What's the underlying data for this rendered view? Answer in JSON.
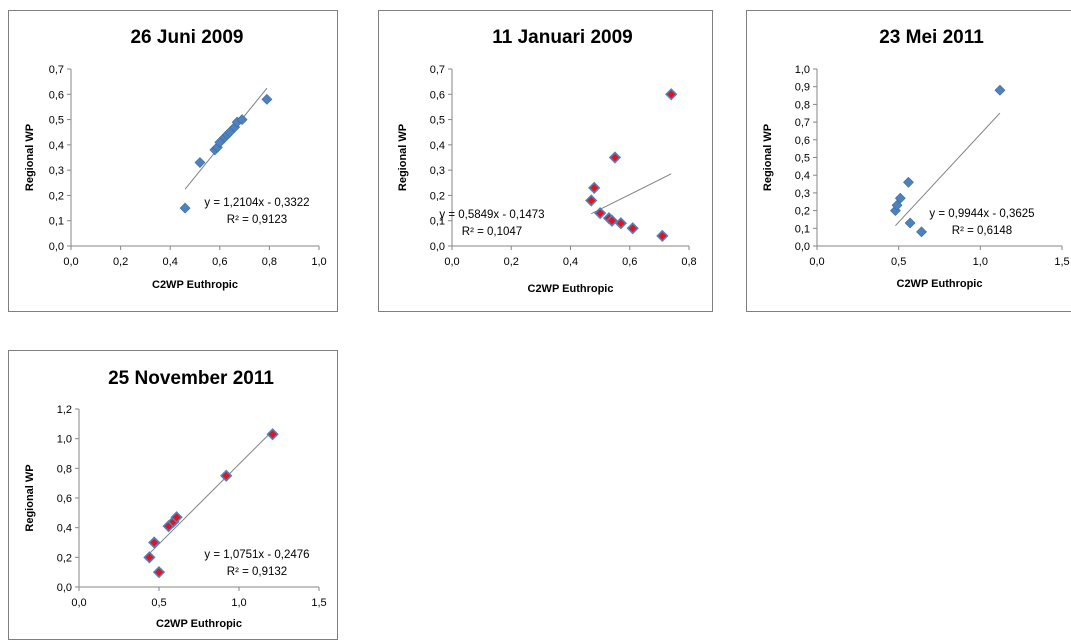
{
  "colors": {
    "blue_marker": "#4f81bd",
    "red_fill": "#e0151f",
    "trendline": "#808080",
    "axis": "#868686",
    "text": "#000000"
  },
  "chart_data": [
    {
      "type": "scatter",
      "title": "26 Juni 2009",
      "xlabel": "C2WP Euthropic",
      "ylabel": "Regional WP",
      "xlim": [
        0,
        1.0
      ],
      "ylim": [
        0,
        0.7
      ],
      "xticks": [
        "0,0",
        "0,2",
        "0,4",
        "0,6",
        "0,8",
        "1,0"
      ],
      "yticks": [
        "0,0",
        "0,1",
        "0,2",
        "0,3",
        "0,4",
        "0,5",
        "0,6",
        "0,7"
      ],
      "marker": "blue",
      "points": [
        [
          0.46,
          0.15
        ],
        [
          0.52,
          0.33
        ],
        [
          0.58,
          0.38
        ],
        [
          0.59,
          0.39
        ],
        [
          0.6,
          0.41
        ],
        [
          0.62,
          0.43
        ],
        [
          0.63,
          0.44
        ],
        [
          0.64,
          0.45
        ],
        [
          0.66,
          0.47
        ],
        [
          0.67,
          0.49
        ],
        [
          0.69,
          0.5
        ],
        [
          0.79,
          0.58
        ]
      ],
      "trendline": {
        "slope": 1.2104,
        "intercept": -0.3322,
        "x_range": [
          0.46,
          0.79
        ]
      },
      "equation": "y = 1,2104x - 0,3322",
      "r2": "R² = 0,9123"
    },
    {
      "type": "scatter",
      "title": "11 Januari 2009",
      "xlabel": "C2WP Euthropic",
      "ylabel": "Regional WP",
      "xlim": [
        0,
        0.8
      ],
      "ylim": [
        0,
        0.7
      ],
      "xticks": [
        "0,0",
        "0,2",
        "0,4",
        "0,6",
        "0,8"
      ],
      "yticks": [
        "0,0",
        "0,1",
        "0,2",
        "0,3",
        "0,4",
        "0,5",
        "0,6",
        "0,7"
      ],
      "marker": "red",
      "points": [
        [
          0.47,
          0.18
        ],
        [
          0.48,
          0.23
        ],
        [
          0.5,
          0.13
        ],
        [
          0.53,
          0.11
        ],
        [
          0.54,
          0.1
        ],
        [
          0.55,
          0.35
        ],
        [
          0.57,
          0.09
        ],
        [
          0.61,
          0.07
        ],
        [
          0.71,
          0.04
        ],
        [
          0.74,
          0.6
        ]
      ],
      "trendline": {
        "slope": 0.5849,
        "intercept": -0.1473,
        "x_range": [
          0.47,
          0.74
        ]
      },
      "equation": "y = 0,5849x - 0,1473",
      "r2": "R² = 0,1047"
    },
    {
      "type": "scatter",
      "title": "23 Mei 2011",
      "xlabel": "C2WP Euthropic",
      "ylabel": "Regional WP",
      "xlim": [
        0,
        1.5
      ],
      "ylim": [
        0,
        1.0
      ],
      "xticks": [
        "0,0",
        "0,5",
        "1,0",
        "1,5"
      ],
      "yticks": [
        "0,0",
        "0,1",
        "0,2",
        "0,3",
        "0,4",
        "0,5",
        "0,6",
        "0,7",
        "0,8",
        "0,9",
        "1,0"
      ],
      "marker": "blue",
      "points": [
        [
          0.48,
          0.2
        ],
        [
          0.49,
          0.23
        ],
        [
          0.51,
          0.27
        ],
        [
          0.56,
          0.36
        ],
        [
          0.57,
          0.13
        ],
        [
          0.64,
          0.08
        ],
        [
          1.12,
          0.88
        ]
      ],
      "trendline": {
        "slope": 0.9944,
        "intercept": -0.3625,
        "x_range": [
          0.48,
          1.12
        ]
      },
      "equation": "y = 0,9944x - 0,3625",
      "r2": "R² = 0,6148"
    },
    {
      "type": "scatter",
      "title": "25 November 2011",
      "xlabel": "C2WP Euthropic",
      "ylabel": "Regional WP",
      "xlim": [
        0,
        1.5
      ],
      "ylim": [
        0,
        1.2
      ],
      "xticks": [
        "0,0",
        "0,5",
        "1,0",
        "1,5"
      ],
      "yticks": [
        "0,0",
        "0,2",
        "0,4",
        "0,6",
        "0,8",
        "1,0",
        "1,2"
      ],
      "marker": "red",
      "points": [
        [
          0.44,
          0.2
        ],
        [
          0.47,
          0.3
        ],
        [
          0.5,
          0.1
        ],
        [
          0.56,
          0.41
        ],
        [
          0.59,
          0.44
        ],
        [
          0.61,
          0.47
        ],
        [
          0.92,
          0.75
        ],
        [
          1.21,
          1.03
        ]
      ],
      "trendline": {
        "slope": 1.0751,
        "intercept": -0.2476,
        "x_range": [
          0.44,
          1.21
        ]
      },
      "equation": "y = 1,0751x - 0,2476",
      "r2": "R² = 0,9132"
    }
  ]
}
